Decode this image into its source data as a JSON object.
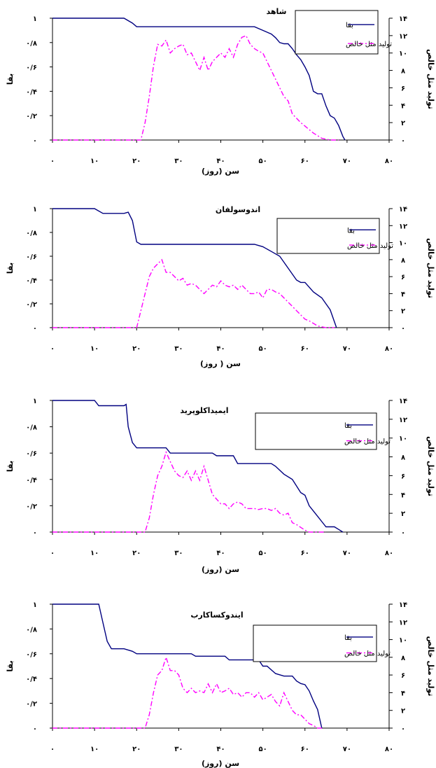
{
  "chart_data": [
    {
      "type": "line",
      "title": "شاهد",
      "xlabel": "سن (روز)",
      "ylabel": "بقا",
      "y2label": "تولید مثل خالص",
      "xlim": [
        0,
        80
      ],
      "ylim": [
        0,
        1
      ],
      "y2lim": [
        0,
        14
      ],
      "xticks": [
        "۰",
        "۱۰",
        "۲۰",
        "۳۰",
        "۴۰",
        "۵۰",
        "۶۰",
        "۷۰",
        "۸۰"
      ],
      "yticks": [
        "۰",
        "۰/۲",
        "۰/۴",
        "۰/۶",
        "۰/۸",
        "۱"
      ],
      "y2ticks": [
        "۰",
        "۲",
        "۴",
        "۶",
        "۸",
        "۱۰",
        "۱۲",
        "۱۴"
      ],
      "grid": false,
      "legend_position": "top-right",
      "series": [
        {
          "name": "بقا",
          "axis": "left",
          "color": "#000080",
          "dash": "solid",
          "x": [
            0,
            17,
            19,
            20,
            48,
            50,
            52,
            53,
            54,
            55,
            56,
            57,
            58,
            59,
            60,
            61,
            62,
            63,
            64,
            65,
            66,
            67,
            68,
            69,
            69.5
          ],
          "y": [
            1,
            1,
            0.96,
            0.93,
            0.93,
            0.9,
            0.87,
            0.84,
            0.8,
            0.79,
            0.79,
            0.75,
            0.7,
            0.66,
            0.6,
            0.53,
            0.4,
            0.38,
            0.38,
            0.28,
            0.2,
            0.18,
            0.12,
            0.03,
            0
          ]
        },
        {
          "name": "تولید مثل خالص",
          "axis": "right",
          "color": "#FF00FF",
          "dash": "dashdot",
          "x": [
            0,
            21,
            22,
            23,
            24,
            25,
            26,
            27,
            28,
            29,
            30,
            31,
            32,
            33,
            34,
            35,
            36,
            37,
            38,
            39,
            40,
            41,
            42,
            43,
            44,
            45,
            46,
            47,
            48,
            49,
            50,
            51,
            52,
            53,
            54,
            55,
            56,
            57,
            58,
            59,
            60,
            61,
            62,
            63,
            64,
            65,
            66,
            67,
            68
          ],
          "y": [
            0,
            0,
            2,
            5,
            8.5,
            11,
            10.8,
            11.5,
            10,
            10.5,
            10.8,
            11,
            9.8,
            10,
            9,
            8,
            9.5,
            8,
            9,
            9.5,
            10,
            9.5,
            10.5,
            9.5,
            11,
            11.8,
            12,
            11,
            10.5,
            10.2,
            10,
            9,
            8,
            7,
            6,
            5,
            4.5,
            3,
            2.5,
            2,
            1.6,
            1.2,
            0.8,
            0.5,
            0.2,
            0.1,
            0,
            0,
            0
          ]
        }
      ]
    },
    {
      "type": "line",
      "title": "اندوسولفان",
      "xlabel": "سن ( روز)",
      "ylabel": "بقا",
      "y2label": "تولید مثل خالص",
      "xlim": [
        0,
        80
      ],
      "ylim": [
        0,
        1
      ],
      "y2lim": [
        0,
        14
      ],
      "xticks": [
        "۰",
        "۱۰",
        "۲۰",
        "۳۰",
        "۴۰",
        "۵۰",
        "۶۰",
        "۷۰",
        "۸۰"
      ],
      "yticks": [
        "۰",
        "۰/۲",
        "۰/۴",
        "۰/۶",
        "۰/۸",
        "۱"
      ],
      "y2ticks": [
        "۰",
        "۲",
        "۴",
        "۶",
        "۸",
        "۱۰",
        "۱۲",
        "۱۴"
      ],
      "grid": false,
      "legend_position": "top-right",
      "series": [
        {
          "name": "بقا",
          "axis": "left",
          "color": "#000080",
          "dash": "solid",
          "x": [
            0,
            10,
            12,
            17,
            18,
            19,
            20,
            21,
            48,
            50,
            52,
            54,
            55,
            56,
            57,
            58,
            59,
            60,
            62,
            64,
            65,
            66,
            67,
            67.5
          ],
          "y": [
            1,
            1,
            0.96,
            0.96,
            0.97,
            0.9,
            0.72,
            0.7,
            0.7,
            0.68,
            0.64,
            0.6,
            0.55,
            0.5,
            0.45,
            0.4,
            0.38,
            0.38,
            0.3,
            0.25,
            0.2,
            0.15,
            0.05,
            0
          ]
        },
        {
          "name": "تولید مثل خالص",
          "axis": "right",
          "color": "#FF00FF",
          "dash": "dashdot",
          "x": [
            0,
            20,
            21,
            22,
            23,
            24,
            25,
            26,
            27,
            28,
            29,
            30,
            31,
            32,
            33,
            34,
            35,
            36,
            37,
            38,
            39,
            40,
            41,
            42,
            43,
            44,
            45,
            46,
            47,
            48,
            49,
            50,
            51,
            52,
            53,
            54,
            55,
            56,
            57,
            58,
            59,
            60,
            61,
            62,
            63,
            64,
            65,
            66,
            67
          ],
          "y": [
            0,
            0,
            2,
            4,
            6,
            7,
            7.5,
            8,
            6.5,
            6.5,
            6,
            5.5,
            5.8,
            5,
            5.2,
            5,
            4.5,
            4,
            4.5,
            5,
            4.8,
            5.5,
            5,
            4.8,
            5,
            4.5,
            5,
            4.5,
            4,
            4,
            4.2,
            3.5,
            4.5,
            4.5,
            4.2,
            4,
            3.5,
            3,
            2.5,
            2,
            1.5,
            1,
            0.8,
            0.5,
            0.2,
            0.1,
            0,
            0,
            0
          ]
        }
      ]
    },
    {
      "type": "line",
      "title": "ایمیداکلوپرید",
      "xlabel": "سن (روز)",
      "ylabel": "بقا",
      "y2label": "تولید مثل خالص",
      "xlim": [
        0,
        80
      ],
      "ylim": [
        0,
        1
      ],
      "y2lim": [
        0,
        14
      ],
      "xticks": [
        "۰",
        "۱۰",
        "۲۰",
        "۳۰",
        "۴۰",
        "۵۰",
        "۶۰",
        "۷۰",
        "۸۰"
      ],
      "yticks": [
        "۰",
        "۰/۲",
        "۰/۴",
        "۰/۶",
        "۰/۸",
        "۱"
      ],
      "y2ticks": [
        "۰",
        "۲",
        "۴",
        "۶",
        "۸",
        "۱۰",
        "۱۲",
        "۱۴"
      ],
      "grid": false,
      "legend_position": "top-right",
      "series": [
        {
          "name": "بقا",
          "axis": "left",
          "color": "#000080",
          "dash": "solid",
          "x": [
            0,
            10,
            11,
            17,
            17.5,
            18,
            19,
            20,
            27,
            28,
            38,
            39,
            43,
            44,
            52,
            53,
            55,
            57,
            59,
            60,
            61,
            62,
            63,
            64,
            65,
            66,
            67,
            68,
            69
          ],
          "y": [
            1,
            1,
            0.96,
            0.96,
            0.97,
            0.8,
            0.68,
            0.64,
            0.64,
            0.6,
            0.6,
            0.58,
            0.58,
            0.52,
            0.52,
            0.5,
            0.44,
            0.4,
            0.3,
            0.28,
            0.2,
            0.16,
            0.12,
            0.08,
            0.04,
            0.04,
            0.04,
            0.02,
            0
          ]
        },
        {
          "name": "تولید مثل خالص",
          "axis": "right",
          "color": "#FF00FF",
          "dash": "dashdot",
          "x": [
            0,
            22,
            23,
            24,
            25,
            26,
            27,
            28,
            29,
            30,
            31,
            32,
            33,
            34,
            35,
            36,
            37,
            38,
            39,
            40,
            41,
            42,
            43,
            44,
            45,
            46,
            47,
            48,
            49,
            50,
            51,
            52,
            53,
            54,
            55,
            56,
            57,
            58,
            59,
            60,
            61,
            62,
            63,
            64,
            65
          ],
          "y": [
            0,
            0,
            1.5,
            4,
            6,
            7,
            8.5,
            7.5,
            6.5,
            6,
            5.8,
            6.5,
            5.5,
            6.5,
            5.5,
            7,
            5.5,
            4,
            3.5,
            3,
            3,
            2.5,
            3,
            3.2,
            3,
            2.5,
            2.5,
            2.5,
            2.4,
            2.5,
            2.5,
            2.3,
            2.5,
            2,
            1.8,
            2,
            1,
            0.8,
            0.5,
            0.2,
            0,
            0,
            0,
            0,
            0
          ]
        }
      ]
    },
    {
      "type": "line",
      "title": "ایندوکساکارب",
      "xlabel": "سن (روز)",
      "ylabel": "بقا",
      "y2label": "تولید مثل خالص",
      "xlim": [
        0,
        80
      ],
      "ylim": [
        0,
        1
      ],
      "y2lim": [
        0,
        14
      ],
      "xticks": [
        "۰",
        "۱۰",
        "۲۰",
        "۳۰",
        "۴۰",
        "۵۰",
        "۶۰",
        "۷۰",
        "۸۰"
      ],
      "yticks": [
        "۰",
        "۰/۲",
        "۰/۴",
        "۰/۶",
        "۰/۸",
        "۱"
      ],
      "y2ticks": [
        "۰",
        "۲",
        "۴",
        "۶",
        "۸",
        "۱۰",
        "۱۲",
        "۱۴"
      ],
      "grid": false,
      "legend_position": "top-right",
      "series": [
        {
          "name": "بقا",
          "axis": "left",
          "color": "#000080",
          "dash": "solid",
          "x": [
            0,
            11,
            12,
            13,
            14,
            17,
            19,
            20,
            33,
            34,
            41,
            42,
            49,
            50,
            51,
            53,
            55,
            56,
            57,
            58,
            59,
            60,
            61,
            62,
            63,
            64
          ],
          "y": [
            1,
            1,
            0.85,
            0.7,
            0.64,
            0.64,
            0.62,
            0.6,
            0.6,
            0.58,
            0.58,
            0.55,
            0.55,
            0.5,
            0.5,
            0.44,
            0.42,
            0.42,
            0.42,
            0.38,
            0.36,
            0.35,
            0.3,
            0.22,
            0.15,
            0
          ]
        },
        {
          "name": "تولید مثل خالص",
          "axis": "right",
          "color": "#FF00FF",
          "dash": "dashdot",
          "x": [
            0,
            22,
            23,
            24,
            25,
            26,
            27,
            28,
            29,
            30,
            31,
            32,
            33,
            34,
            35,
            36,
            37,
            38,
            39,
            40,
            41,
            42,
            43,
            44,
            45,
            46,
            47,
            48,
            49,
            50,
            51,
            52,
            53,
            54,
            55,
            56,
            57,
            58,
            59,
            60,
            61,
            62,
            63,
            64
          ],
          "y": [
            0,
            0,
            1.5,
            4,
            6,
            6.5,
            8,
            6.5,
            6.5,
            6,
            4.5,
            4,
            4.5,
            4,
            4.2,
            4,
            5,
            4,
            5,
            4,
            4.2,
            4.5,
            3.8,
            4,
            3.5,
            4,
            4,
            3.5,
            4,
            3.2,
            3.5,
            3.8,
            3,
            2.5,
            4,
            3,
            2,
            1.5,
            1.5,
            1,
            0.5,
            0.3,
            0,
            0
          ]
        }
      ]
    }
  ]
}
